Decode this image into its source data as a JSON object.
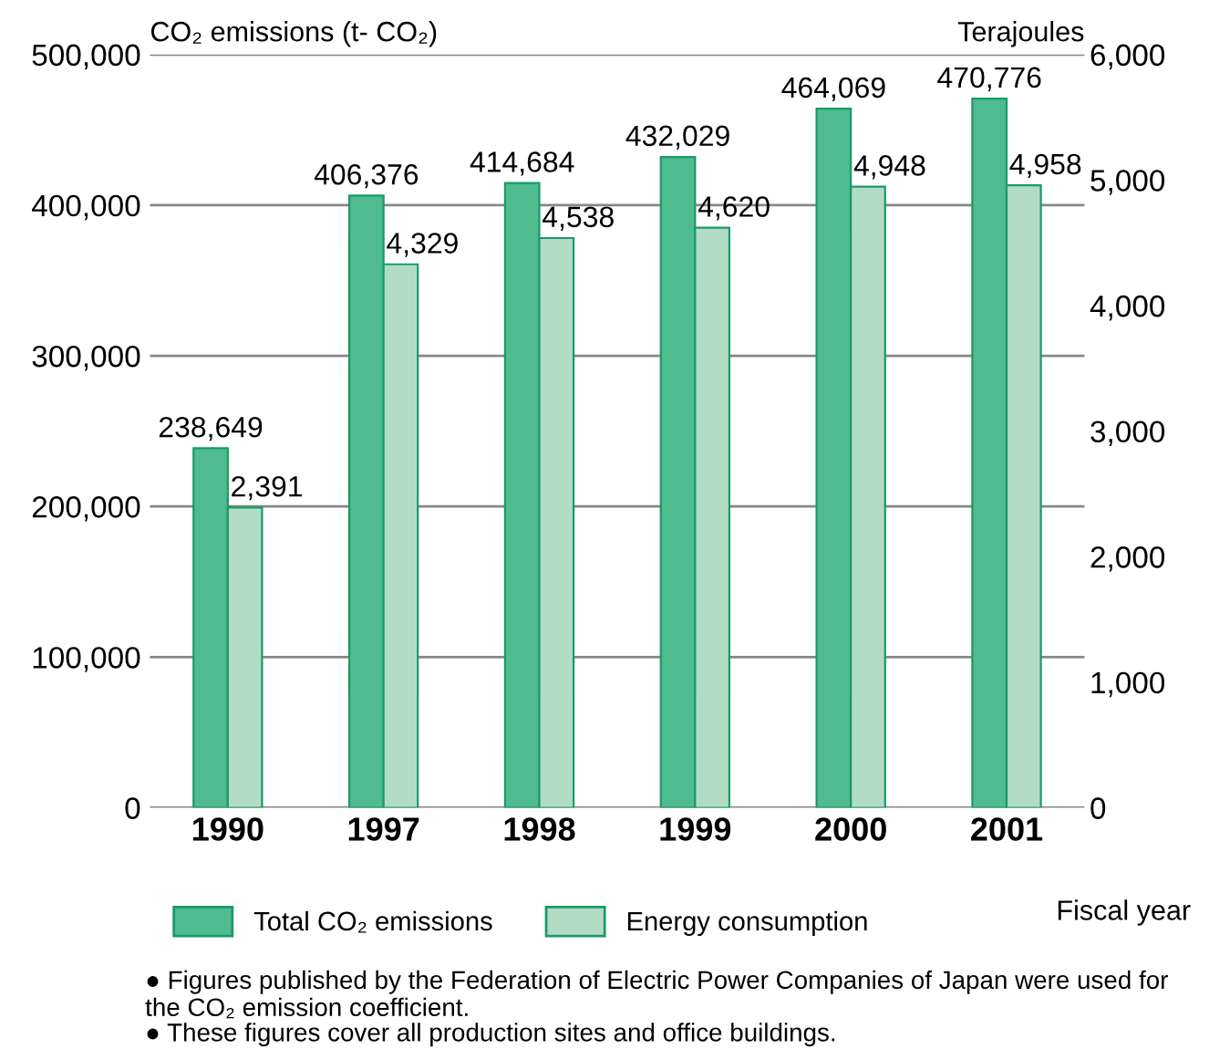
{
  "chart_data": {
    "type": "bar",
    "categories": [
      "1990",
      "1997",
      "1998",
      "1999",
      "2000",
      "2001"
    ],
    "series": [
      {
        "name": "Total CO₂ emissions",
        "color": "#4fbb8e",
        "values": [
          238649,
          406376,
          414684,
          432029,
          464069,
          470776
        ],
        "value_labels": [
          "238,649",
          "406,376",
          "414,684",
          "432,029",
          "464,069",
          "470,776"
        ]
      },
      {
        "name": "Energy consumption",
        "color": "#b3dcc4",
        "axis": "y2",
        "values": [
          2391,
          4329,
          4538,
          4620,
          4948,
          4958
        ],
        "value_labels": [
          "2,391",
          "4,329",
          "4,538",
          "4,620",
          "4,948",
          "4,958"
        ]
      }
    ],
    "ylabel": "CO₂ emissions (t- CO₂)",
    "y2label": "Terajoules",
    "xlabel": "Fiscal year",
    "ylim": [
      0,
      500000
    ],
    "yticks": [
      {
        "value": 0,
        "label": "0"
      },
      {
        "value": 100000,
        "label": "100,000"
      },
      {
        "value": 200000,
        "label": "200,000"
      },
      {
        "value": 300000,
        "label": "300,000"
      },
      {
        "value": 400000,
        "label": "400,000"
      },
      {
        "value": 500000,
        "label": "500,000"
      }
    ],
    "y2lim": [
      0,
      6000
    ],
    "y2ticks": [
      {
        "value": 0,
        "label": "0"
      },
      {
        "value": 1000,
        "label": "1,000"
      },
      {
        "value": 2000,
        "label": "2,000"
      },
      {
        "value": 3000,
        "label": "3,000"
      },
      {
        "value": 4000,
        "label": "4,000"
      },
      {
        "value": 5000,
        "label": "5,000"
      },
      {
        "value": 6000,
        "label": "6,000"
      }
    ],
    "grid": "y",
    "legend": "bottom",
    "annotations": [
      "● Figures published by the Federation of Electric Power Companies of Japan were used for the CO₂ emission coefficient.",
      "● These figures cover all production sites and office buildings."
    ]
  }
}
